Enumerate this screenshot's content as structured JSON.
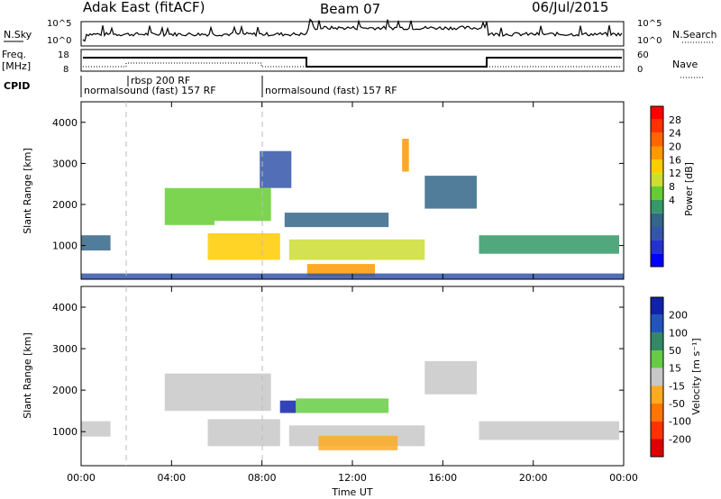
{
  "header": {
    "station": "Adak East (fitACF)",
    "beam": "Beam 07",
    "date": "06/Jul/2015"
  },
  "top_panels": {
    "nsky_label": "N.Sky",
    "nsky_ticks": [
      "10^5",
      "10^0"
    ],
    "nsearch_label": "N.Search",
    "nsearch_ticks": [
      "10^5",
      "10^0"
    ],
    "freq_label_line1": "Freq.",
    "freq_label_line2": "[MHz]",
    "freq_ticks": [
      "18",
      "8"
    ],
    "nave_label": "Nave",
    "nave_ticks": [
      "60",
      "0"
    ],
    "cpid_label": "CPID",
    "cpid_segments": [
      {
        "label": "normalsound (fast) 157 RF"
      },
      {
        "label": "rbsp 200 RF"
      },
      {
        "label": "normalsound (fast) 157 RF"
      }
    ]
  },
  "power_panel": {
    "ylabel": "Slant Range [km]",
    "yticks": [
      "4000",
      "3000",
      "2000",
      "1000"
    ],
    "cbar_label": "Power [dB]",
    "cbar_ticks": [
      "28",
      "24",
      "20",
      "16",
      "12",
      "8",
      "4"
    ],
    "cbar_colors": [
      "#ff0000",
      "#ff3300",
      "#ff6600",
      "#ff9900",
      "#ffcc00",
      "#ccdd33",
      "#66cc33",
      "#339966",
      "#336688",
      "#3355aa",
      "#2233cc",
      "#0000ff"
    ]
  },
  "velocity_panel": {
    "ylabel": "Slant Range [km]",
    "yticks": [
      "4000",
      "3000",
      "2000",
      "1000"
    ],
    "cbar_label": "Velocity [m s⁻¹]",
    "cbar_ticks": [
      "200",
      "100",
      "50",
      "15",
      "-15",
      "-50",
      "-100",
      "-200"
    ],
    "cbar_colors": [
      "#1122aa",
      "#2255bb",
      "#338866",
      "#66cc44",
      "#c8c8c8",
      "#ffaa22",
      "#ff7700",
      "#ff3300",
      "#dd0000"
    ]
  },
  "x_axis": {
    "label": "Time UT",
    "ticks": [
      "00:00",
      "04:00",
      "08:00",
      "12:00",
      "16:00",
      "20:00",
      "00:00"
    ]
  },
  "chart_data": [
    {
      "type": "heatmap",
      "name": "Power",
      "x_unit": "hours UT",
      "y_unit": "km",
      "xlim": [
        0,
        24
      ],
      "ylim": [
        180,
        4500
      ],
      "clim_db": [
        0,
        30
      ],
      "regions": [
        {
          "t0": 0.0,
          "t1": 1.3,
          "r0": 880,
          "r1": 1250,
          "value": 7
        },
        {
          "t0": 3.7,
          "t1": 5.9,
          "r0": 1500,
          "r1": 2400,
          "value": 13
        },
        {
          "t0": 5.9,
          "t1": 8.4,
          "r0": 1600,
          "r1": 2400,
          "value": 15
        },
        {
          "t0": 5.6,
          "t1": 8.8,
          "r0": 650,
          "r1": 1300,
          "value": 18
        },
        {
          "t0": 7.9,
          "t1": 9.3,
          "r0": 2400,
          "r1": 3300,
          "value": 6
        },
        {
          "t0": 9.0,
          "t1": 13.6,
          "r0": 1450,
          "r1": 1800,
          "value": 8
        },
        {
          "t0": 9.2,
          "t1": 15.2,
          "r0": 650,
          "r1": 1150,
          "value": 17
        },
        {
          "t0": 10.0,
          "t1": 13.0,
          "r0": 250,
          "r1": 550,
          "value": 22
        },
        {
          "t0": 15.2,
          "t1": 17.5,
          "r0": 1900,
          "r1": 2700,
          "value": 7
        },
        {
          "t0": 17.6,
          "t1": 23.8,
          "r0": 800,
          "r1": 1250,
          "value": 10
        },
        {
          "t0": 14.2,
          "t1": 14.5,
          "r0": 2800,
          "r1": 3600,
          "value": 22
        },
        {
          "t0": 0.0,
          "t1": 24.0,
          "r0": 180,
          "r1": 320,
          "value": 6
        }
      ]
    },
    {
      "type": "heatmap",
      "name": "Velocity",
      "x_unit": "hours UT",
      "y_unit": "km",
      "xlim": [
        0,
        24
      ],
      "ylim": [
        180,
        4500
      ],
      "clim_ms": [
        -200,
        200
      ],
      "regions": [
        {
          "t0": 0.0,
          "t1": 1.3,
          "r0": 880,
          "r1": 1250,
          "value": 0
        },
        {
          "t0": 3.7,
          "t1": 8.4,
          "r0": 1500,
          "r1": 2400,
          "value": 0
        },
        {
          "t0": 5.6,
          "t1": 8.8,
          "r0": 650,
          "r1": 1300,
          "value": 0
        },
        {
          "t0": 8.8,
          "t1": 9.5,
          "r0": 1450,
          "r1": 1750,
          "value": 200
        },
        {
          "t0": 9.5,
          "t1": 13.6,
          "r0": 1450,
          "r1": 1800,
          "value": 60
        },
        {
          "t0": 9.2,
          "t1": 15.2,
          "r0": 650,
          "r1": 1150,
          "value": 0
        },
        {
          "t0": 10.5,
          "t1": 14.0,
          "r0": 550,
          "r1": 900,
          "value": -40
        },
        {
          "t0": 15.2,
          "t1": 17.5,
          "r0": 1900,
          "r1": 2700,
          "value": 0
        },
        {
          "t0": 17.6,
          "t1": 23.8,
          "r0": 800,
          "r1": 1250,
          "value": 0
        }
      ]
    }
  ]
}
